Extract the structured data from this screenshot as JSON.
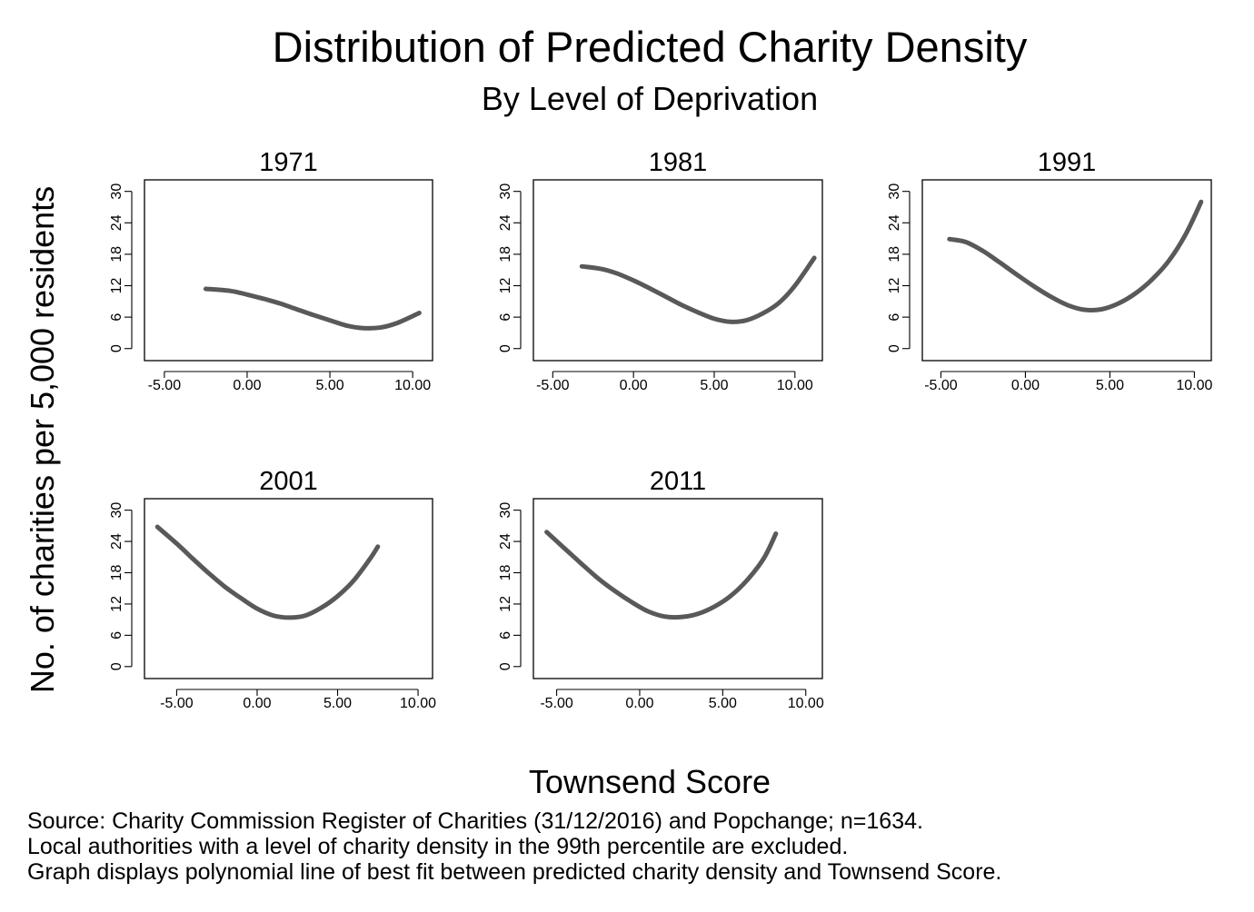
{
  "figure": {
    "title": "Distribution of Predicted Charity Density",
    "subtitle": "By Level of Deprivation",
    "ylabel": "No. of charities per 5,000 residents",
    "xlabel": "Townsend Score",
    "source_lines": [
      "Source: Charity Commission Register of Charities (31/12/2016) and Popchange; n=1634.",
      "Local authorities with a level of charity density in the 99th percentile are excluded.",
      "Graph displays polynomial line of best fit between predicted charity density and Townsend Score."
    ]
  },
  "chart_data": [
    {
      "type": "line",
      "title": "1971",
      "xlabel": "",
      "ylabel": "",
      "x_ticks": [
        -5,
        0,
        5,
        10
      ],
      "x_tick_labels": [
        "-5.00",
        "0.00",
        "5.00",
        "10.00"
      ],
      "y_ticks": [
        0,
        6,
        12,
        18,
        24,
        30
      ],
      "y_tick_labels": [
        "0",
        "6",
        "12",
        "18",
        "24",
        "30"
      ],
      "xlim": [
        -6.2,
        11.2
      ],
      "ylim": [
        -2.3,
        32.2
      ],
      "series": [
        {
          "color": "#595959",
          "x": [
            -2.5,
            -1,
            0,
            1,
            2,
            3,
            4,
            5,
            6,
            7,
            8,
            9,
            10.4
          ],
          "y": [
            11.4,
            11.0,
            10.3,
            9.5,
            8.6,
            7.5,
            6.4,
            5.4,
            4.4,
            3.9,
            4.0,
            4.8,
            6.8
          ]
        }
      ]
    },
    {
      "type": "line",
      "title": "1981",
      "xlabel": "",
      "ylabel": "",
      "x_ticks": [
        -5,
        0,
        5,
        10
      ],
      "x_tick_labels": [
        "-5.00",
        "0.00",
        "5.00",
        "10.00"
      ],
      "y_ticks": [
        0,
        6,
        12,
        18,
        24,
        30
      ],
      "y_tick_labels": [
        "0",
        "6",
        "12",
        "18",
        "24",
        "30"
      ],
      "xlim": [
        -6.2,
        11.7
      ],
      "ylim": [
        -2.3,
        32.2
      ],
      "series": [
        {
          "color": "#595959",
          "x": [
            -3.2,
            -2,
            -1,
            0,
            1,
            2,
            3,
            4,
            5,
            6,
            7,
            8,
            9,
            10,
            11.2
          ],
          "y": [
            15.7,
            15.2,
            14.3,
            13.0,
            11.5,
            9.9,
            8.3,
            6.9,
            5.7,
            5.1,
            5.4,
            6.7,
            8.7,
            12.0,
            17.3
          ]
        }
      ]
    },
    {
      "type": "line",
      "title": "1991",
      "xlabel": "",
      "ylabel": "",
      "x_ticks": [
        -5,
        0,
        5,
        10
      ],
      "x_tick_labels": [
        "-5.00",
        "0.00",
        "5.00",
        "10.00"
      ],
      "y_ticks": [
        0,
        6,
        12,
        18,
        24,
        30
      ],
      "y_tick_labels": [
        "0",
        "6",
        "12",
        "18",
        "24",
        "30"
      ],
      "xlim": [
        -6.1,
        11.0
      ],
      "ylim": [
        -2.3,
        32.2
      ],
      "series": [
        {
          "color": "#595959",
          "x": [
            -4.5,
            -3.5,
            -2.5,
            -1.5,
            -0.5,
            0.5,
            1.5,
            2.5,
            3.5,
            4.5,
            5.5,
            6.5,
            7.5,
            8.5,
            9.5,
            10.4
          ],
          "y": [
            20.9,
            20.3,
            18.6,
            16.4,
            14.1,
            11.9,
            9.9,
            8.3,
            7.4,
            7.5,
            8.6,
            10.5,
            13.2,
            16.8,
            21.9,
            28.0
          ]
        }
      ]
    },
    {
      "type": "line",
      "title": "2001",
      "xlabel": "",
      "ylabel": "",
      "x_ticks": [
        -5,
        0,
        5,
        10
      ],
      "x_tick_labels": [
        "-5.00",
        "0.00",
        "5.00",
        "10.00"
      ],
      "y_ticks": [
        0,
        6,
        12,
        18,
        24,
        30
      ],
      "y_tick_labels": [
        "0",
        "6",
        "12",
        "18",
        "24",
        "30"
      ],
      "xlim": [
        -7.0,
        10.9
      ],
      "ylim": [
        -2.3,
        32.2
      ],
      "series": [
        {
          "color": "#595959",
          "x": [
            -6.2,
            -5,
            -4,
            -3,
            -2,
            -1,
            0,
            1,
            2,
            3,
            4,
            5,
            6,
            7,
            7.5
          ],
          "y": [
            26.8,
            23.6,
            20.7,
            17.9,
            15.3,
            13.1,
            11.1,
            9.8,
            9.4,
            9.8,
            11.3,
            13.5,
            16.5,
            20.6,
            23.0
          ]
        }
      ]
    },
    {
      "type": "line",
      "title": "2011",
      "xlabel": "",
      "ylabel": "",
      "x_ticks": [
        -5,
        0,
        5,
        10
      ],
      "x_tick_labels": [
        "-5.00",
        "0.00",
        "5.00",
        "10.00"
      ],
      "y_ticks": [
        0,
        6,
        12,
        18,
        24,
        30
      ],
      "y_tick_labels": [
        "0",
        "6",
        "12",
        "18",
        "24",
        "30"
      ],
      "xlim": [
        -6.4,
        11.0
      ],
      "ylim": [
        -2.3,
        32.2
      ],
      "series": [
        {
          "color": "#595959",
          "x": [
            -5.6,
            -4.5,
            -3.5,
            -2.5,
            -1.5,
            -0.5,
            0.5,
            1.5,
            2.5,
            3.5,
            4.5,
            5.5,
            6.5,
            7.5,
            8.2
          ],
          "y": [
            25.8,
            22.6,
            19.7,
            16.9,
            14.5,
            12.4,
            10.6,
            9.6,
            9.5,
            10.1,
            11.5,
            13.6,
            16.7,
            20.9,
            25.5
          ]
        }
      ]
    }
  ]
}
